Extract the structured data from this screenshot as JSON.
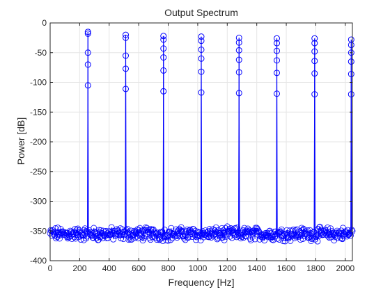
{
  "chart_data": {
    "type": "line",
    "title": "Output Spectrum",
    "xlabel": "Frequency [Hz]",
    "ylabel": "Power [dB]",
    "xlim": [
      0,
      2048
    ],
    "ylim": [
      -400,
      0
    ],
    "xticks": [
      0,
      200,
      400,
      600,
      800,
      1000,
      1200,
      1400,
      1600,
      1800,
      2000
    ],
    "yticks": [
      0,
      -50,
      -100,
      -150,
      -200,
      -250,
      -300,
      -350,
      -400
    ],
    "grid": true,
    "marker": "o",
    "color": "#0000ff",
    "noise_floor_db": -355,
    "peaks": [
      {
        "freq": 256,
        "power": [
          -15,
          -18,
          -50,
          -70,
          -105
        ]
      },
      {
        "freq": 512,
        "power": [
          -20,
          -25,
          -55,
          -77,
          -111
        ]
      },
      {
        "freq": 768,
        "power": [
          -22,
          -28,
          -43,
          -58,
          -80,
          -115
        ]
      },
      {
        "freq": 1024,
        "power": [
          -23,
          -30,
          -45,
          -60,
          -82,
          -117
        ]
      },
      {
        "freq": 1280,
        "power": [
          -25,
          -33,
          -46,
          -62,
          -83,
          -118
        ]
      },
      {
        "freq": 1536,
        "power": [
          -26,
          -34,
          -47,
          -63,
          -84,
          -119
        ]
      },
      {
        "freq": 1792,
        "power": [
          -26,
          -34,
          -48,
          -64,
          -85,
          -120
        ]
      },
      {
        "freq": 2040,
        "power": [
          -28,
          -37,
          -50,
          -65,
          -86,
          -120
        ]
      }
    ]
  }
}
